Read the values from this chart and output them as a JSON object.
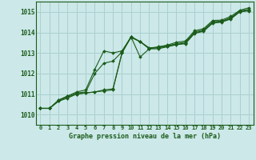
{
  "background_color": "#cce8e8",
  "grid_color": "#aad0d0",
  "line_color": "#1a5c1a",
  "marker_color": "#1a5c1a",
  "title": "Graphe pression niveau de la mer (hPa)",
  "xlim": [
    -0.5,
    23.5
  ],
  "ylim": [
    1009.5,
    1015.5
  ],
  "yticks": [
    1010,
    1011,
    1012,
    1013,
    1014,
    1015
  ],
  "xticks": [
    0,
    1,
    2,
    3,
    4,
    5,
    6,
    7,
    8,
    9,
    10,
    11,
    12,
    13,
    14,
    15,
    16,
    17,
    18,
    19,
    20,
    21,
    22,
    23
  ],
  "series": [
    [
      1010.3,
      1010.3,
      1010.65,
      1010.8,
      1011.0,
      1011.05,
      1011.1,
      1011.15,
      1011.2,
      1013.0,
      1013.8,
      1013.55,
      1013.2,
      1013.2,
      1013.3,
      1013.4,
      1013.45,
      1013.95,
      1014.05,
      1014.45,
      1014.5,
      1014.65,
      1015.0,
      1015.05
    ],
    [
      1010.3,
      1010.3,
      1010.65,
      1010.85,
      1011.0,
      1011.05,
      1011.1,
      1011.2,
      1011.25,
      1013.0,
      1013.78,
      1013.55,
      1013.22,
      1013.25,
      1013.32,
      1013.42,
      1013.48,
      1013.98,
      1014.08,
      1014.48,
      1014.52,
      1014.68,
      1015.02,
      1015.08
    ],
    [
      1010.3,
      1010.3,
      1010.7,
      1010.9,
      1011.05,
      1011.1,
      1012.0,
      1012.5,
      1012.6,
      1013.05,
      1013.75,
      1013.55,
      1013.25,
      1013.28,
      1013.35,
      1013.45,
      1013.52,
      1014.02,
      1014.12,
      1014.52,
      1014.55,
      1014.72,
      1015.05,
      1015.12
    ],
    [
      1010.3,
      1010.3,
      1010.7,
      1010.9,
      1011.1,
      1011.2,
      1012.2,
      1013.1,
      1013.0,
      1013.1,
      1013.78,
      1012.8,
      1013.2,
      1013.3,
      1013.38,
      1013.52,
      1013.58,
      1014.08,
      1014.18,
      1014.58,
      1014.6,
      1014.78,
      1015.08,
      1015.2
    ]
  ]
}
